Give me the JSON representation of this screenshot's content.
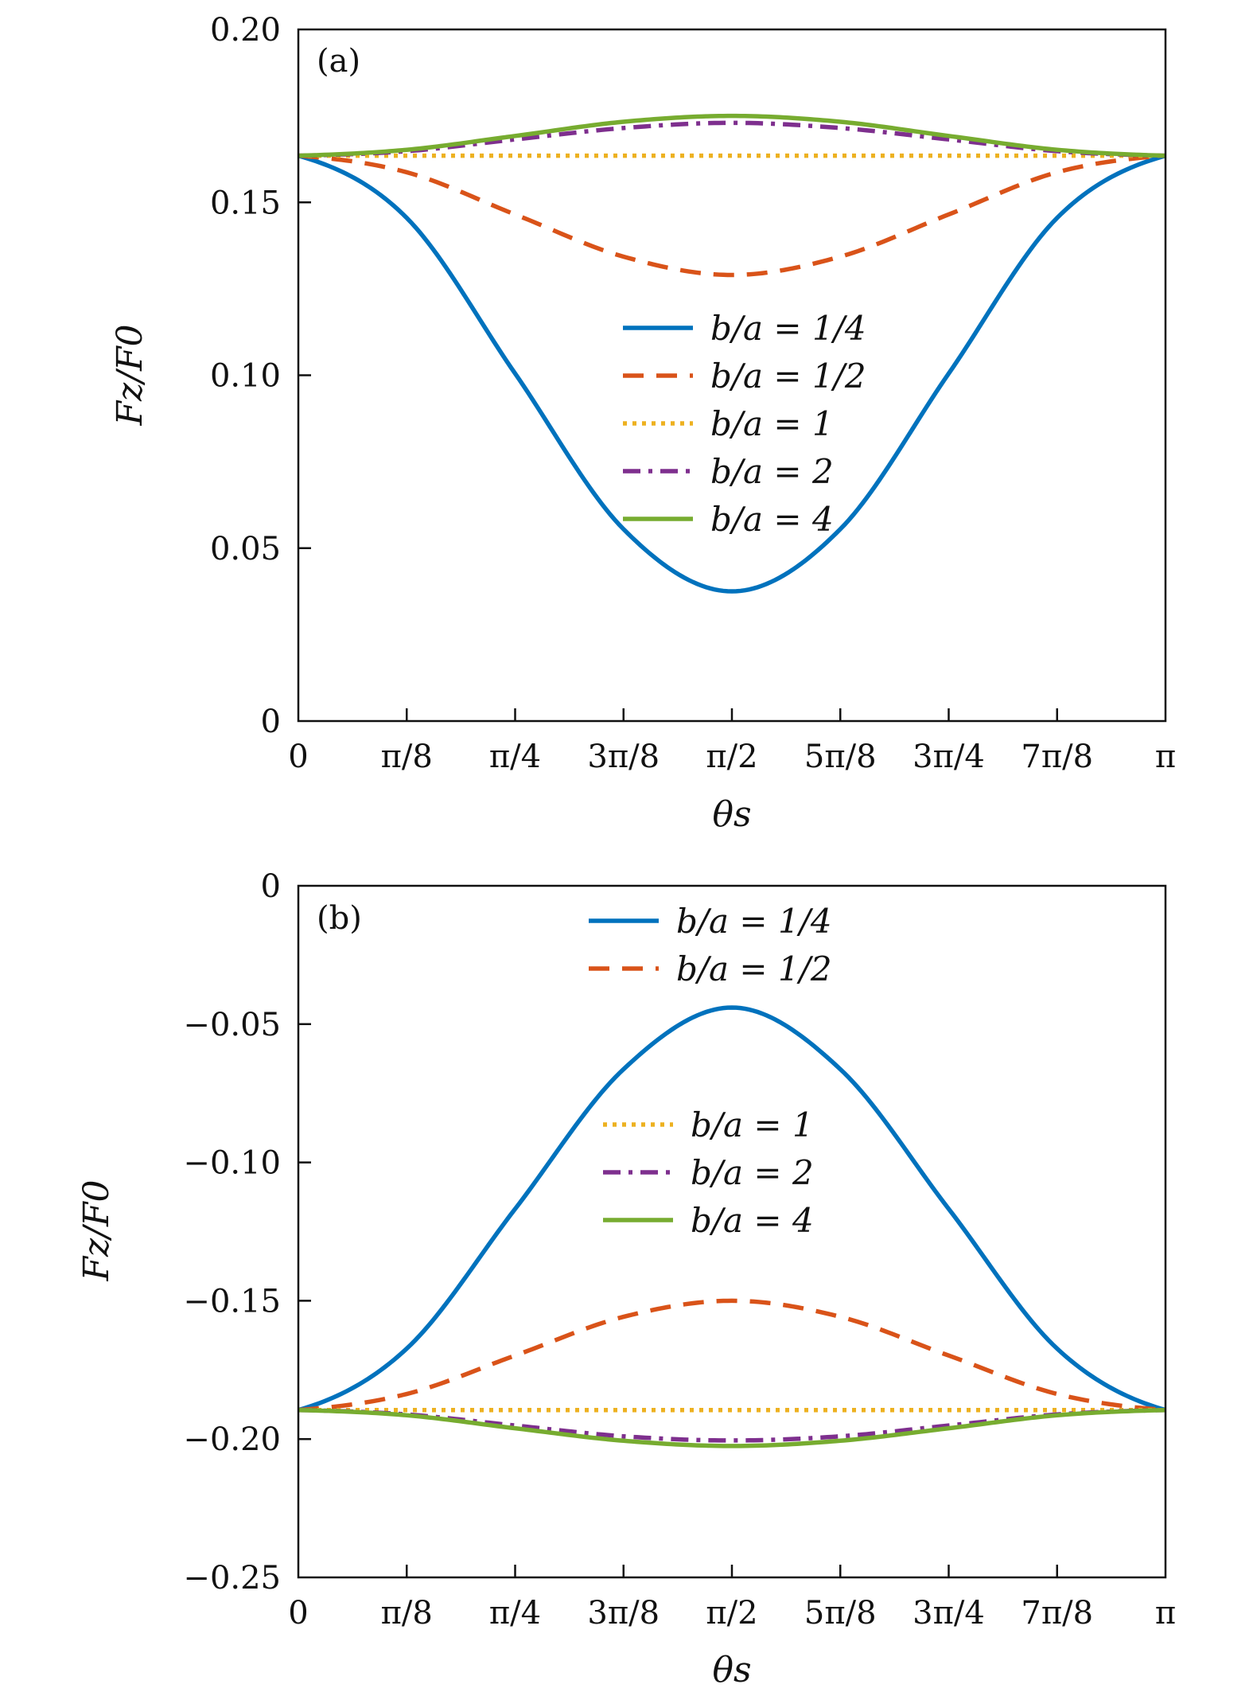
{
  "chart_data": [
    {
      "panel": "(a)",
      "type": "line",
      "xlabel": "θs",
      "ylabel": "Fz/F0",
      "xlim": [
        0,
        3.14159
      ],
      "ylim": [
        0,
        0.2
      ],
      "x_ticks": [
        0,
        0.3927,
        0.7854,
        1.1781,
        1.5708,
        1.9635,
        2.3562,
        2.7489,
        3.14159
      ],
      "x_tick_labels": [
        "0",
        "π/8",
        "π/4",
        "3π/8",
        "π/2",
        "5π/8",
        "3π/4",
        "7π/8",
        "π"
      ],
      "y_ticks": [
        0,
        0.05,
        0.1,
        0.15,
        0.2
      ],
      "y_tick_labels": [
        "0",
        "0.05",
        "0.10",
        "0.15",
        "0.20"
      ],
      "grid": false,
      "legend_position": "center",
      "x": [
        0,
        0.3927,
        0.7854,
        1.1781,
        1.5708,
        1.9635,
        2.3562,
        2.7489,
        3.14159
      ],
      "series": [
        {
          "name": "b/a = 1/4",
          "color": "#0072BD",
          "dash": "solid",
          "values": [
            0.1635,
            0.1455,
            0.1005,
            0.0555,
            0.0375,
            0.0555,
            0.1005,
            0.1455,
            0.1635
          ]
        },
        {
          "name": "b/a = 1/2",
          "color": "#D95319",
          "dash": "dashed",
          "values": [
            0.1635,
            0.1587,
            0.1465,
            0.1343,
            0.129,
            0.1343,
            0.1465,
            0.1587,
            0.1635
          ]
        },
        {
          "name": "b/a = 1",
          "color": "#EDB120",
          "dash": "dotted",
          "values": [
            0.1635,
            0.1635,
            0.1635,
            0.1635,
            0.1635,
            0.1635,
            0.1635,
            0.1635,
            0.1635
          ]
        },
        {
          "name": "b/a = 2",
          "color": "#7E2F8E",
          "dash": "dashdot",
          "values": [
            0.1635,
            0.1648,
            0.1682,
            0.1715,
            0.173,
            0.1715,
            0.1682,
            0.1648,
            0.1635
          ]
        },
        {
          "name": "b/a = 4",
          "color": "#77AC30",
          "dash": "solid",
          "values": [
            0.1635,
            0.1652,
            0.1692,
            0.1733,
            0.175,
            0.1733,
            0.1692,
            0.1652,
            0.1635
          ]
        }
      ]
    },
    {
      "panel": "(b)",
      "type": "line",
      "xlabel": "θs",
      "ylabel": "Fz/F0",
      "xlim": [
        0,
        3.14159
      ],
      "ylim": [
        -0.25,
        0
      ],
      "x_ticks": [
        0,
        0.3927,
        0.7854,
        1.1781,
        1.5708,
        1.9635,
        2.3562,
        2.7489,
        3.14159
      ],
      "x_tick_labels": [
        "0",
        "π/8",
        "π/4",
        "3π/8",
        "π/2",
        "5π/8",
        "3π/4",
        "7π/8",
        "π"
      ],
      "y_ticks": [
        -0.25,
        -0.2,
        -0.15,
        -0.1,
        -0.05,
        0
      ],
      "y_tick_labels": [
        "−0.25",
        "−0.20",
        "−0.15",
        "−0.10",
        "−0.05",
        "0"
      ],
      "grid": false,
      "legend_position": "top-center and center (split)",
      "x": [
        0,
        0.3927,
        0.7854,
        1.1781,
        1.5708,
        1.9635,
        2.3562,
        2.7489,
        3.14159
      ],
      "series": [
        {
          "name": "b/a = 1/4",
          "color": "#0072BD",
          "dash": "solid",
          "values": [
            -0.1895,
            -0.1673,
            -0.1168,
            -0.0663,
            -0.044,
            -0.0663,
            -0.1168,
            -0.1673,
            -0.1895
          ]
        },
        {
          "name": "b/a = 1/2",
          "color": "#D95319",
          "dash": "dashed",
          "values": [
            -0.1895,
            -0.1837,
            -0.1698,
            -0.1558,
            -0.15,
            -0.1558,
            -0.1698,
            -0.1837,
            -0.1895
          ]
        },
        {
          "name": "b/a = 1",
          "color": "#EDB120",
          "dash": "dotted",
          "values": [
            -0.1895,
            -0.1895,
            -0.1895,
            -0.1895,
            -0.1895,
            -0.1895,
            -0.1895,
            -0.1895,
            -0.1895
          ]
        },
        {
          "name": "b/a = 2",
          "color": "#7E2F8E",
          "dash": "dashdot",
          "values": [
            -0.1895,
            -0.1911,
            -0.1951,
            -0.199,
            -0.2005,
            -0.199,
            -0.1951,
            -0.1911,
            -0.1895
          ]
        },
        {
          "name": "b/a = 4",
          "color": "#77AC30",
          "dash": "solid",
          "values": [
            -0.1895,
            -0.1914,
            -0.1961,
            -0.2006,
            -0.2025,
            -0.2006,
            -0.1961,
            -0.1914,
            -0.1895
          ]
        }
      ]
    }
  ]
}
